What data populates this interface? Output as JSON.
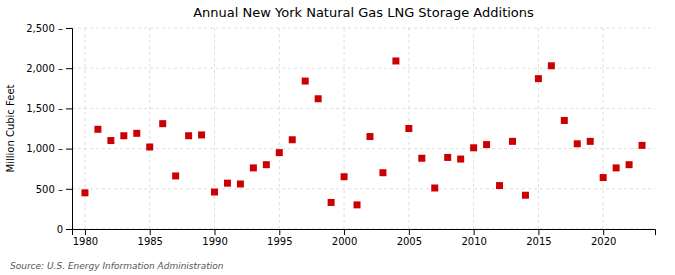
{
  "chart_data": {
    "type": "scatter",
    "title": "Annual New York Natural Gas LNG Storage Additions",
    "ylabel": "Million Cubic Feet",
    "source": "Source: U.S. Energy Information Administration",
    "x": [
      1980,
      1981,
      1982,
      1983,
      1984,
      1985,
      1986,
      1987,
      1988,
      1989,
      1990,
      1991,
      1992,
      1993,
      1994,
      1995,
      1996,
      1997,
      1998,
      1999,
      2000,
      2001,
      2002,
      2003,
      2004,
      2005,
      2006,
      2007,
      2008,
      2009,
      2010,
      2011,
      2012,
      2013,
      2014,
      2015,
      2016,
      2017,
      2018,
      2019,
      2020,
      2021,
      2022,
      2023
    ],
    "values": [
      450,
      1240,
      1100,
      1160,
      1190,
      1020,
      1310,
      660,
      1160,
      1170,
      460,
      570,
      560,
      760,
      800,
      950,
      1110,
      1840,
      1620,
      330,
      650,
      300,
      1150,
      700,
      2090,
      1250,
      880,
      510,
      890,
      870,
      1010,
      1050,
      540,
      1090,
      420,
      1870,
      2030,
      1350,
      1060,
      1090,
      640,
      760,
      800,
      1040
    ],
    "color": "#cc0000",
    "marker": "square",
    "xlim": [
      1979,
      2024
    ],
    "ylim": [
      0,
      2500
    ],
    "xticks": [
      1980,
      1985,
      1990,
      1995,
      2000,
      2005,
      2010,
      2015,
      2020
    ],
    "yticks": [
      0,
      {
        "value": 500,
        "label": "500 –"
      },
      {
        "value": 1000,
        "label": "1,000 –"
      },
      {
        "value": 1500,
        "label": "1,500 –"
      },
      {
        "value": 2000,
        "label": "2,000 –"
      },
      {
        "value": 2500,
        "label": "2,500 –"
      }
    ],
    "grid": true
  }
}
